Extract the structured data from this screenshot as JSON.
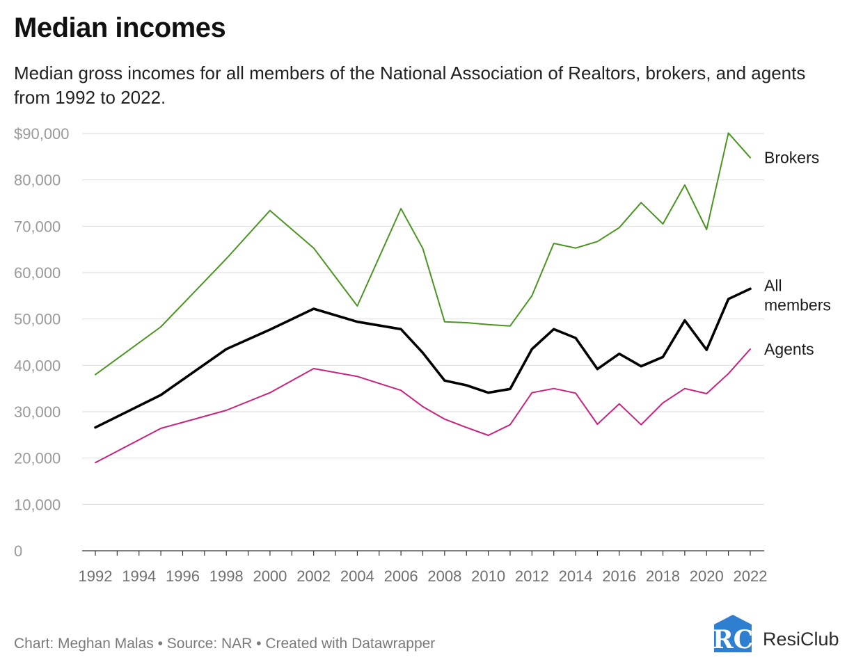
{
  "header": {
    "title": "Median incomes",
    "subtitle": "Median gross incomes for all members of the National Association of Realtors, brokers, and agents from 1992 to 2022."
  },
  "footer": {
    "credit": "Chart: Meghan Malas • Source: NAR • Created with Datawrapper"
  },
  "brand": {
    "name": "ResiClub",
    "logo_text": "RC"
  },
  "chart_data": {
    "type": "line",
    "title": "Median incomes",
    "xlabel": "",
    "ylabel": "",
    "xlim": [
      1992,
      2022
    ],
    "ylim": [
      0,
      90000
    ],
    "grid": true,
    "x_ticks": [
      1992,
      1994,
      1996,
      1998,
      2000,
      2002,
      2004,
      2006,
      2008,
      2010,
      2012,
      2014,
      2016,
      2018,
      2020,
      2022
    ],
    "y_ticks": [
      0,
      10000,
      20000,
      30000,
      40000,
      50000,
      60000,
      70000,
      80000,
      90000
    ],
    "y_tick_labels": [
      "0",
      "10,000",
      "20,000",
      "30,000",
      "40,000",
      "50,000",
      "60,000",
      "70,000",
      "80,000",
      "$90,000"
    ],
    "series": [
      {
        "name": "Brokers",
        "label": "Brokers",
        "color": "#4a9420",
        "x": [
          1992,
          1995,
          1998,
          2000,
          2002,
          2004,
          2006,
          2007,
          2008,
          2009,
          2010,
          2011,
          2012,
          2013,
          2014,
          2015,
          2016,
          2017,
          2018,
          2019,
          2020,
          2021,
          2022
        ],
        "values": [
          38000,
          48300,
          63000,
          73400,
          65300,
          52800,
          73800,
          65200,
          49400,
          49200,
          48800,
          48500,
          55000,
          66300,
          65300,
          66700,
          69700,
          75100,
          70500,
          78900,
          69300,
          90100,
          84800
        ]
      },
      {
        "name": "All members",
        "label": "All members",
        "color": "#000000",
        "x": [
          1992,
          1995,
          1998,
          2000,
          2002,
          2004,
          2006,
          2007,
          2008,
          2009,
          2010,
          2011,
          2012,
          2013,
          2014,
          2015,
          2016,
          2017,
          2018,
          2019,
          2020,
          2021,
          2022
        ],
        "values": [
          26600,
          33600,
          43500,
          47700,
          52200,
          49400,
          47800,
          42700,
          36700,
          35700,
          34100,
          34900,
          43500,
          47800,
          45900,
          39200,
          42500,
          39800,
          41800,
          49700,
          43330,
          54300,
          56500
        ]
      },
      {
        "name": "Agents",
        "label": "Agents",
        "color": "#c8217e",
        "x": [
          1992,
          1995,
          1998,
          2000,
          2002,
          2004,
          2006,
          2007,
          2008,
          2009,
          2010,
          2011,
          2012,
          2013,
          2014,
          2015,
          2016,
          2017,
          2018,
          2019,
          2020,
          2021,
          2022
        ],
        "values": [
          19000,
          26400,
          30300,
          34100,
          39300,
          37600,
          34600,
          31100,
          28400,
          26600,
          24900,
          27200,
          34100,
          35000,
          34000,
          27300,
          31700,
          27200,
          31900,
          35000,
          33900,
          38200,
          43500
        ]
      }
    ]
  }
}
